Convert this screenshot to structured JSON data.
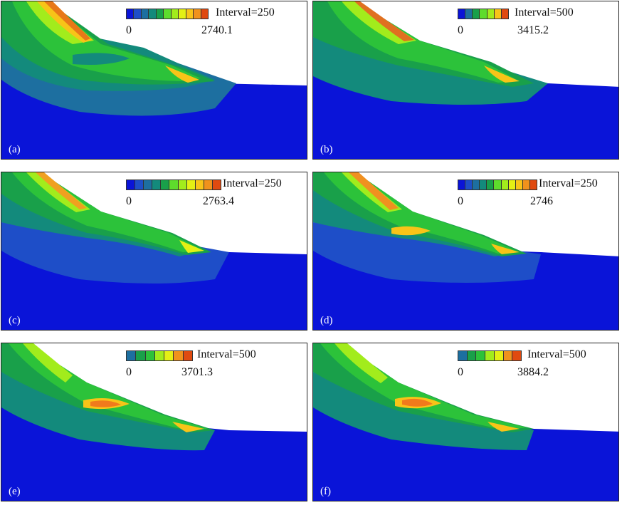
{
  "colormap": [
    "#0a14d8",
    "#1e4ec8",
    "#1d6fa0",
    "#138a7c",
    "#19a04a",
    "#2cc23a",
    "#5edc2c",
    "#a2ec1c",
    "#e4f014",
    "#f8c418",
    "#f0921c",
    "#e04a10"
  ],
  "panels": [
    {
      "label": "(a)",
      "interval": "Interval=250",
      "min": "0",
      "max": "2740.1",
      "peak": "#e87818"
    },
    {
      "label": "(b)",
      "interval": "Interval=500",
      "min": "0",
      "max": "3415.2",
      "peak": "#e07020"
    },
    {
      "label": "(c)",
      "interval": "Interval=250",
      "min": "0",
      "max": "2763.4",
      "peak": "#f0a020"
    },
    {
      "label": "(d)",
      "interval": "Interval=250",
      "min": "0",
      "max": "2746",
      "peak": "#f09020"
    },
    {
      "label": "(e)",
      "interval": "Interval=500",
      "min": "0",
      "max": "3701.3",
      "peak": "#f07a1c"
    },
    {
      "label": "(f)",
      "interval": "Interval=500",
      "min": "0",
      "max": "3884.2",
      "peak": "#f07a1c"
    }
  ]
}
